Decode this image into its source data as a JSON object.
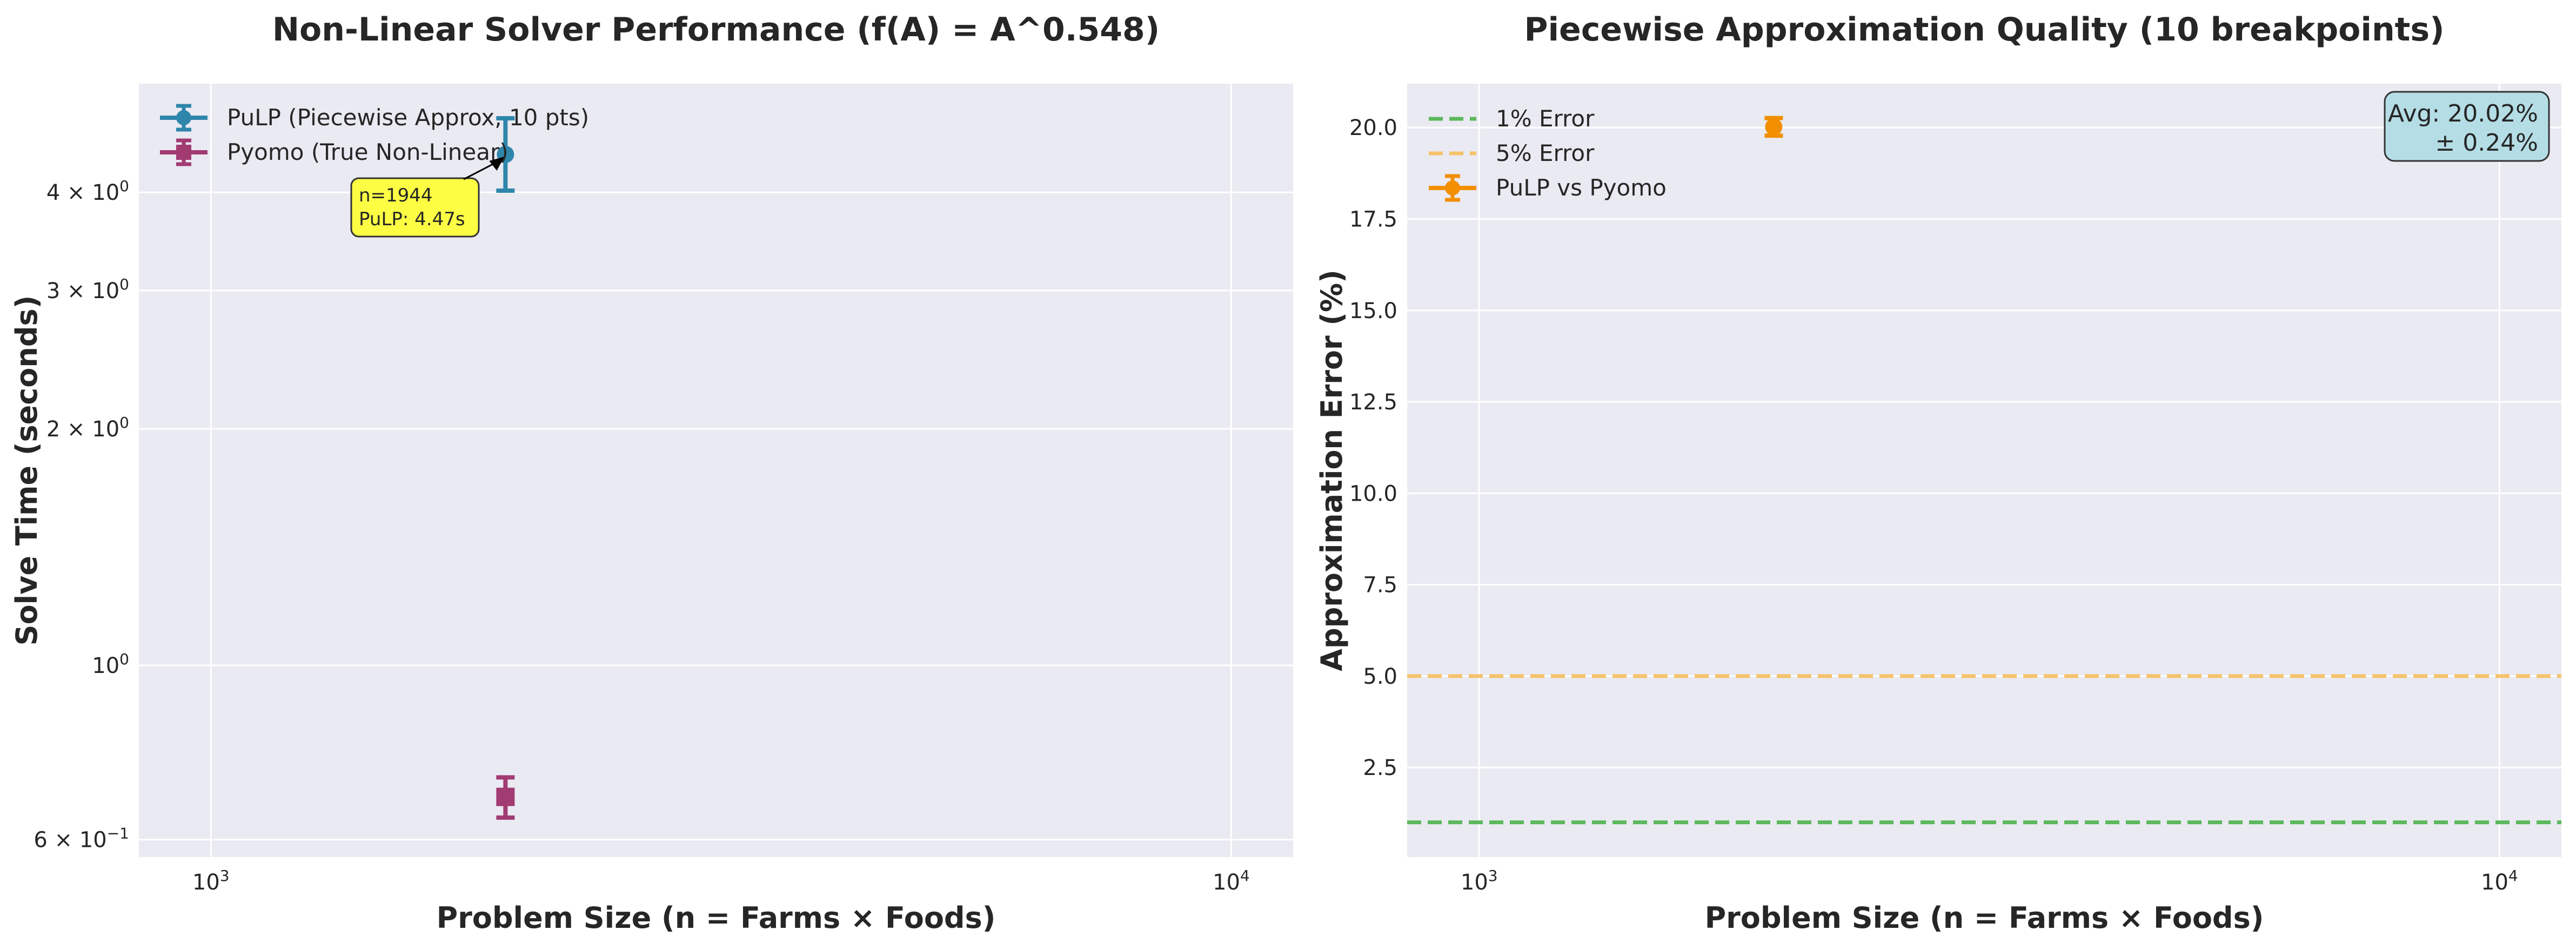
{
  "colors": {
    "panel_bg": "#eaeaf2",
    "grid": "#ffffff",
    "pulp": "#2e86ab",
    "pyomo": "#a23b72",
    "error_points": "#f18f01",
    "line_1pct": "#5cb85c",
    "line_5pct": "#f5c36b",
    "annotation_bg": "#fdfd44",
    "avg_box_bg": "#b5dde5"
  },
  "chart_data": [
    {
      "type": "scatter",
      "title": "Non-Linear Solver Performance (f(A) = A^0.548)",
      "xlabel": "Problem Size (n = Farms × Foods)",
      "ylabel": "Solve Time (seconds)",
      "xscale": "log",
      "yscale": "log",
      "xlim": [
        850,
        11500
      ],
      "ylim": [
        0.57,
        5.5
      ],
      "xtick_labels": [
        {
          "value": 1000,
          "mantissa": "10",
          "exp": "3"
        },
        {
          "value": 10000,
          "mantissa": "10",
          "exp": "4"
        }
      ],
      "ytick_labels": [
        {
          "value": 0.6,
          "mantissa": "6 × 10",
          "exp": "−1"
        },
        {
          "value": 1,
          "mantissa": "10",
          "exp": "0"
        },
        {
          "value": 2,
          "mantissa": "2 × 10",
          "exp": "0"
        },
        {
          "value": 3,
          "mantissa": "3 × 10",
          "exp": "0"
        },
        {
          "value": 4,
          "mantissa": "4 × 10",
          "exp": "0"
        }
      ],
      "grid": true,
      "legend_position": "top-left",
      "series": [
        {
          "name": "PuLP (Piecewise Approx, 10 pts)",
          "marker": "circle",
          "points": [
            {
              "x": 1944,
              "y": 4.47,
              "err_low": 4.02,
              "err_high": 4.97
            }
          ]
        },
        {
          "name": "Pyomo (True Non-Linear)",
          "marker": "square",
          "points": [
            {
              "x": 1944,
              "y": 0.68,
              "err_low": 0.64,
              "err_high": 0.72
            }
          ]
        }
      ],
      "annotations": [
        {
          "lines": [
            "n=1944",
            "PuLP: 4.47s"
          ],
          "x": 1944,
          "y": 4.47
        }
      ]
    },
    {
      "type": "scatter",
      "title": "Piecewise Approximation Quality (10 breakpoints)",
      "xlabel": "Problem Size (n = Farms × Foods)",
      "ylabel": "Approximation Error (%)",
      "xscale": "log",
      "yscale": "linear",
      "xlim": [
        850,
        11500
      ],
      "ylim": [
        0.05,
        21.2
      ],
      "xtick_labels": [
        {
          "value": 1000,
          "mantissa": "10",
          "exp": "3"
        },
        {
          "value": 10000,
          "mantissa": "10",
          "exp": "4"
        }
      ],
      "ytick_labels": [
        "2.5",
        "5.0",
        "7.5",
        "10.0",
        "12.5",
        "15.0",
        "17.5",
        "20.0"
      ],
      "yticks": [
        2.5,
        5.0,
        7.5,
        10.0,
        12.5,
        15.0,
        17.5,
        20.0
      ],
      "grid": true,
      "legend_position": "top-left",
      "reference_lines": [
        {
          "name": "1% Error",
          "y": 1
        },
        {
          "name": "5% Error",
          "y": 5
        }
      ],
      "series": [
        {
          "name": "PuLP vs Pyomo",
          "marker": "circle",
          "points": [
            {
              "x": 1944,
              "y": 20.02,
              "err_low": 19.78,
              "err_high": 20.26
            }
          ]
        }
      ],
      "summary_box": {
        "lines": [
          "Avg: 20.02%",
          "± 0.24%"
        ]
      }
    }
  ]
}
